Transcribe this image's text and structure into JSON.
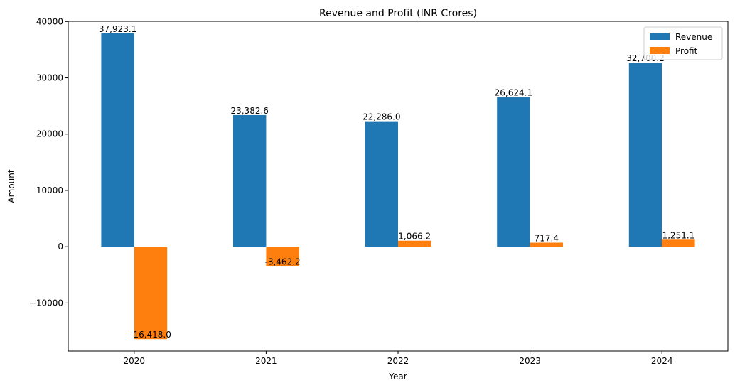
{
  "chart_data": {
    "type": "bar",
    "title": "Revenue and Profit (INR Crores)",
    "xlabel": "Year",
    "ylabel": "Amount",
    "categories": [
      "2020",
      "2021",
      "2022",
      "2023",
      "2024"
    ],
    "series": [
      {
        "name": "Revenue",
        "color": "#1f77b4",
        "values": [
          37923.1,
          23382.6,
          22286.0,
          26624.1,
          32700.2
        ],
        "labels": [
          "37,923.1",
          "23,382.6",
          "22,286.0",
          "26,624.1",
          "32,700.2"
        ]
      },
      {
        "name": "Profit",
        "color": "#ff7f0e",
        "values": [
          -16418.0,
          -3462.2,
          1066.2,
          717.4,
          1251.1
        ],
        "labels": [
          "-16,418.0",
          "-3,462.2",
          "1,066.2",
          "717.4",
          "1,251.1"
        ]
      }
    ],
    "ylim": [
      -18534.1,
      40039.1
    ],
    "yticks": [
      -10000,
      0,
      10000,
      20000,
      30000,
      40000
    ],
    "ytick_labels": [
      "−10000",
      "0",
      "10000",
      "20000",
      "30000",
      "40000"
    ],
    "grid": false,
    "legend_position": "top-right"
  }
}
